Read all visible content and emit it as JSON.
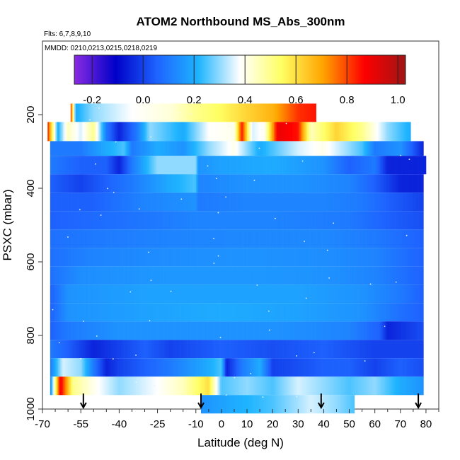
{
  "chart_data": {
    "type": "heatmap",
    "title": "ATOM2 Northbound MS_Abs_300nm",
    "flights_note": "Flts: 6,7,8,9,10",
    "dates_note": "MMDD: 0210,0213,0215,0218,0219",
    "xlabel": "Latitude (deg N)",
    "ylabel": "PSXC (mbar)",
    "xlim": [
      -70,
      85
    ],
    "ylim": [
      1000,
      0
    ],
    "x_ticks": [
      -70,
      -55,
      -40,
      -25,
      -10,
      0,
      10,
      20,
      30,
      40,
      50,
      60,
      70,
      80
    ],
    "x_tick_labels": [
      "-70",
      "-55",
      "-40",
      "-25",
      "-10",
      "0",
      "10",
      "20",
      "30",
      "40",
      "50",
      "60",
      "70",
      "80"
    ],
    "y_ticks": [
      200,
      400,
      600,
      800,
      1000
    ],
    "y_tick_labels": [
      "200",
      "400",
      "600",
      "800",
      "1000"
    ],
    "colorbar": {
      "min": -0.27,
      "max": 1.03,
      "ticks": [
        -0.2,
        0.0,
        0.2,
        0.4,
        0.6,
        0.8,
        1.0
      ],
      "tick_labels": [
        "-0.2",
        "0.0",
        "0.2",
        "0.4",
        "0.6",
        "0.8",
        "1.0"
      ],
      "stops": [
        "#8a2be2",
        "#0000c8",
        "#1e64ff",
        "#1eb4ff",
        "#ffffff",
        "#ffff64",
        "#ffa500",
        "#ff0000",
        "#a01414"
      ]
    },
    "arrows_latitude": [
      -54,
      -8,
      39,
      77
    ],
    "layers": [
      {
        "p_top": 170,
        "p_bot": 220,
        "x0": -59,
        "x1": 37,
        "kn": [
          [
            -59,
            0.85
          ],
          [
            -57,
            0.2
          ],
          [
            -50,
            0.3
          ],
          [
            -35,
            0.38
          ],
          [
            -20,
            0.42
          ],
          [
            -10,
            0.5
          ],
          [
            0,
            0.55
          ],
          [
            10,
            0.62
          ],
          [
            20,
            0.68
          ],
          [
            30,
            0.82
          ],
          [
            37,
            0.85
          ]
        ]
      },
      {
        "p_top": 220,
        "p_bot": 272,
        "x0": -68,
        "x1": 74,
        "kn": [
          [
            -68,
            0.85
          ],
          [
            -64,
            0.2
          ],
          [
            -60,
            0.45
          ],
          [
            -55,
            0.35
          ],
          [
            -50,
            0.5
          ],
          [
            -45,
            0.1
          ],
          [
            -40,
            -0.05
          ],
          [
            -33,
            0.1
          ],
          [
            -28,
            0.3
          ],
          [
            -15,
            0.2
          ],
          [
            -5,
            0.38
          ],
          [
            5,
            0.4
          ],
          [
            8,
            0.85
          ],
          [
            12,
            0.35
          ],
          [
            17,
            0.4
          ],
          [
            22,
            0.9
          ],
          [
            30,
            0.85
          ],
          [
            35,
            0.45
          ],
          [
            45,
            0.62
          ],
          [
            55,
            0.5
          ],
          [
            65,
            0.3
          ],
          [
            74,
            0.2
          ]
        ]
      },
      {
        "p_top": 272,
        "p_bot": 312,
        "x0": -67,
        "x1": 79,
        "kn": [
          [
            -67,
            0.1
          ],
          [
            -55,
            0.1
          ],
          [
            -45,
            0.2
          ],
          [
            -38,
            0.25
          ],
          [
            -35,
            0.1
          ],
          [
            -25,
            0.2
          ],
          [
            -15,
            0.15
          ],
          [
            -5,
            0.3
          ],
          [
            5,
            0.4
          ],
          [
            15,
            0.2
          ],
          [
            20,
            0.25
          ],
          [
            30,
            0.35
          ],
          [
            40,
            0.4
          ],
          [
            50,
            0.3
          ],
          [
            55,
            0.25
          ],
          [
            60,
            0.1
          ],
          [
            70,
            0.15
          ],
          [
            79,
            -0.05
          ]
        ]
      },
      {
        "p_top": 312,
        "p_bot": 362,
        "x0": -67,
        "x1": 80,
        "kn": [
          [
            -67,
            0.1
          ],
          [
            -55,
            0.05
          ],
          [
            -45,
            0.05
          ],
          [
            -40,
            -0.05
          ],
          [
            -35,
            0.1
          ],
          [
            -25,
            0.3
          ],
          [
            -10,
            0.3
          ],
          [
            -9,
            0.15
          ],
          [
            0,
            0.18
          ],
          [
            20,
            0.2
          ],
          [
            40,
            0.15
          ],
          [
            50,
            0.05
          ],
          [
            60,
            0.1
          ],
          [
            65,
            -0.05
          ],
          [
            80,
            -0.05
          ]
        ]
      },
      {
        "p_top": 362,
        "p_bot": 412,
        "x0": -67,
        "x1": 79,
        "kn": [
          [
            -67,
            0.05
          ],
          [
            -55,
            0.0
          ],
          [
            -45,
            0.05
          ],
          [
            -35,
            0.1
          ],
          [
            -20,
            0.2
          ],
          [
            -10,
            0.25
          ],
          [
            -9,
            0.12
          ],
          [
            10,
            0.15
          ],
          [
            30,
            0.15
          ],
          [
            50,
            0.12
          ],
          [
            60,
            0.05
          ],
          [
            70,
            -0.05
          ],
          [
            79,
            -0.05
          ]
        ]
      },
      {
        "p_top": 412,
        "p_bot": 462,
        "x0": -67,
        "x1": 79,
        "kn": [
          [
            -67,
            0.05
          ],
          [
            -50,
            0.05
          ],
          [
            -30,
            0.12
          ],
          [
            -10,
            0.15
          ],
          [
            -9,
            0.1
          ],
          [
            10,
            0.12
          ],
          [
            40,
            0.12
          ],
          [
            55,
            0.1
          ],
          [
            65,
            0.05
          ],
          [
            79,
            0.0
          ]
        ]
      },
      {
        "p_top": 462,
        "p_bot": 512,
        "x0": -67,
        "x1": 79,
        "kn": [
          [
            -67,
            0.05
          ],
          [
            -40,
            0.08
          ],
          [
            -10,
            0.12
          ],
          [
            20,
            0.12
          ],
          [
            50,
            0.1
          ],
          [
            65,
            0.05
          ],
          [
            79,
            0.02
          ]
        ]
      },
      {
        "p_top": 512,
        "p_bot": 562,
        "x0": -67,
        "x1": 79,
        "kn": [
          [
            -67,
            0.08
          ],
          [
            -50,
            0.1
          ],
          [
            -20,
            0.12
          ],
          [
            10,
            0.13
          ],
          [
            40,
            0.13
          ],
          [
            60,
            0.1
          ],
          [
            79,
            0.05
          ]
        ]
      },
      {
        "p_top": 562,
        "p_bot": 612,
        "x0": -67,
        "x1": 79,
        "kn": [
          [
            -67,
            0.08
          ],
          [
            -50,
            0.12
          ],
          [
            -20,
            0.14
          ],
          [
            10,
            0.15
          ],
          [
            40,
            0.14
          ],
          [
            60,
            0.12
          ],
          [
            79,
            0.05
          ]
        ]
      },
      {
        "p_top": 612,
        "p_bot": 662,
        "x0": -67,
        "x1": 79,
        "kn": [
          [
            -67,
            0.08
          ],
          [
            -55,
            0.14
          ],
          [
            -20,
            0.16
          ],
          [
            10,
            0.16
          ],
          [
            40,
            0.15
          ],
          [
            60,
            0.12
          ],
          [
            79,
            0.05
          ]
        ]
      },
      {
        "p_top": 662,
        "p_bot": 712,
        "x0": -67,
        "x1": 79,
        "kn": [
          [
            -67,
            0.05
          ],
          [
            -60,
            0.15
          ],
          [
            -30,
            0.18
          ],
          [
            0,
            0.18
          ],
          [
            30,
            0.18
          ],
          [
            55,
            0.15
          ],
          [
            70,
            0.1
          ],
          [
            79,
            0.05
          ]
        ]
      },
      {
        "p_top": 712,
        "p_bot": 762,
        "x0": -67,
        "x1": 79,
        "kn": [
          [
            -67,
            0.05
          ],
          [
            -60,
            0.15
          ],
          [
            -30,
            0.18
          ],
          [
            0,
            0.2
          ],
          [
            30,
            0.18
          ],
          [
            55,
            0.15
          ],
          [
            70,
            0.08
          ],
          [
            79,
            0.05
          ]
        ]
      },
      {
        "p_top": 762,
        "p_bot": 812,
        "x0": -67,
        "x1": 79,
        "kn": [
          [
            -67,
            0.05
          ],
          [
            -60,
            0.1
          ],
          [
            -40,
            0.15
          ],
          [
            -10,
            0.15
          ],
          [
            20,
            0.15
          ],
          [
            50,
            0.12
          ],
          [
            62,
            0.05
          ],
          [
            65,
            -0.05
          ],
          [
            79,
            0.02
          ]
        ]
      },
      {
        "p_top": 812,
        "p_bot": 862,
        "x0": -67,
        "x1": 79,
        "kn": [
          [
            -67,
            0.1
          ],
          [
            -60,
            0.05
          ],
          [
            -50,
            -0.05
          ],
          [
            -40,
            0.0
          ],
          [
            -30,
            0.05
          ],
          [
            -20,
            0.0
          ],
          [
            0,
            0.05
          ],
          [
            20,
            0.02
          ],
          [
            40,
            0.05
          ],
          [
            60,
            0.0
          ],
          [
            79,
            0.0
          ]
        ]
      },
      {
        "p_top": 862,
        "p_bot": 912,
        "x0": -67,
        "x1": 79,
        "kn": [
          [
            -67,
            0.1
          ],
          [
            -62,
            0.35
          ],
          [
            -55,
            0.3
          ],
          [
            -50,
            0.1
          ],
          [
            -45,
            -0.05
          ],
          [
            -40,
            0.0
          ],
          [
            -30,
            0.05
          ],
          [
            -20,
            0.1
          ],
          [
            -5,
            0.2
          ],
          [
            0,
            0.25
          ],
          [
            2,
            -0.05
          ],
          [
            8,
            0.1
          ],
          [
            15,
            0.2
          ],
          [
            20,
            0.0
          ],
          [
            30,
            0.02
          ],
          [
            40,
            0.05
          ],
          [
            50,
            0.05
          ],
          [
            60,
            0.0
          ],
          [
            70,
            0.05
          ],
          [
            79,
            0.02
          ]
        ]
      },
      {
        "p_top": 912,
        "p_bot": 962,
        "x0": -67,
        "x1": 79,
        "kn": [
          [
            -67,
            0.1
          ],
          [
            -63,
            0.9
          ],
          [
            -58,
            0.5
          ],
          [
            -50,
            0.4
          ],
          [
            -40,
            0.3
          ],
          [
            -25,
            0.38
          ],
          [
            -15,
            0.45
          ],
          [
            -5,
            0.6
          ],
          [
            0,
            0.25
          ],
          [
            10,
            0.3
          ],
          [
            20,
            0.25
          ],
          [
            30,
            0.35
          ],
          [
            40,
            0.3
          ],
          [
            50,
            0.25
          ],
          [
            60,
            0.3
          ],
          [
            70,
            0.2
          ],
          [
            79,
            0.15
          ]
        ]
      },
      {
        "p_top": 962,
        "p_bot": 1012,
        "x0": -8,
        "x1": 52,
        "kn": [
          [
            -8,
            0.15
          ],
          [
            5,
            0.2
          ],
          [
            20,
            0.25
          ],
          [
            35,
            0.35
          ],
          [
            45,
            0.3
          ],
          [
            52,
            0.25
          ]
        ]
      }
    ]
  }
}
